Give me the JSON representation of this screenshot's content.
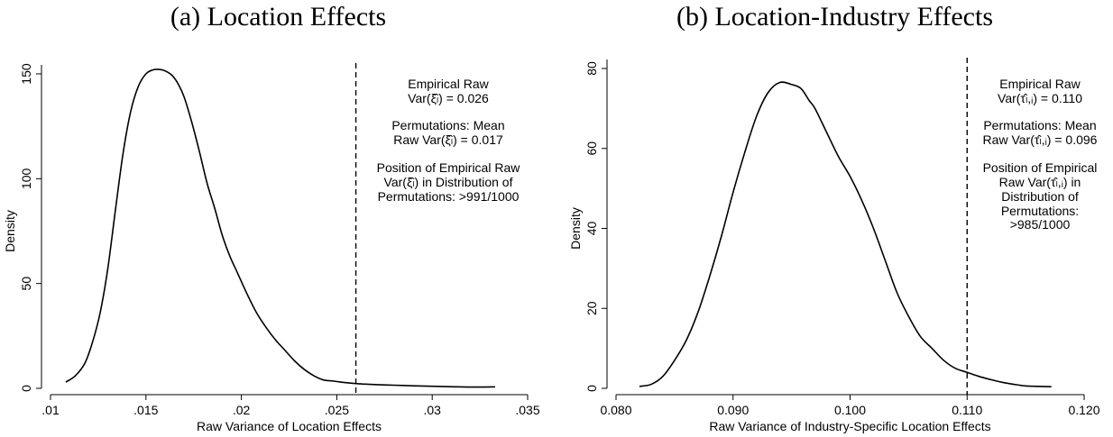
{
  "chart_data": [
    {
      "type": "line",
      "title": "(a) Location Effects",
      "xlabel": "Raw Variance of Location Effects",
      "ylabel": "Density",
      "xlim": [
        0.01,
        0.035
      ],
      "ylim": [
        0,
        150
      ],
      "xticks": [
        0.01,
        0.015,
        0.02,
        0.025,
        0.03,
        0.035
      ],
      "xtick_labels": [
        ".01",
        ".015",
        ".02",
        ".025",
        ".03",
        ".035"
      ],
      "yticks": [
        0,
        50,
        100,
        150
      ],
      "ytick_labels": [
        "0",
        "50",
        "100",
        "150"
      ],
      "grid": false,
      "series": [
        {
          "x": [
            0.0108,
            0.0113,
            0.0118,
            0.0122,
            0.0126,
            0.013,
            0.0134,
            0.0138,
            0.0142,
            0.0146,
            0.015,
            0.0154,
            0.0158,
            0.0161,
            0.0164,
            0.0167,
            0.017,
            0.0174,
            0.0178,
            0.0182,
            0.0186,
            0.019,
            0.0194,
            0.0198,
            0.0203,
            0.0208,
            0.0213,
            0.0218,
            0.0223,
            0.0228,
            0.0233,
            0.0238,
            0.0243,
            0.0248,
            0.0252,
            0.0256,
            0.026,
            0.0265,
            0.027,
            0.028,
            0.029,
            0.03,
            0.031,
            0.032,
            0.0333
          ],
          "y": [
            3,
            6,
            12,
            22,
            36,
            57,
            85,
            112,
            132,
            144,
            150,
            152,
            152,
            151,
            149,
            145,
            139,
            127,
            113,
            98,
            86,
            73,
            63,
            55,
            45,
            36,
            29,
            23,
            18,
            13,
            9,
            6,
            4,
            3.5,
            3,
            2.6,
            2.3,
            2,
            1.8,
            1.5,
            1.2,
            1,
            0.8,
            0.6,
            0.7
          ]
        }
      ],
      "reference_line": {
        "x": 0.026,
        "style": "dashed"
      },
      "annotations": [
        "Empirical Raw",
        "Var(ξ̂ₗ) = 0.026",
        "Permutations: Mean",
        "Raw Var(ξ̂ₗ) = 0.017",
        "Position of Empirical Raw",
        "Var(ξ̂ₗ) in Distribution of",
        "Permutations: >991/1000"
      ]
    },
    {
      "type": "line",
      "title": "(b) Location-Industry Effects",
      "xlabel": "Raw Variance of Industry-Specific Location Effects",
      "ylabel": "Density",
      "xlim": [
        0.08,
        0.12
      ],
      "ylim": [
        0,
        80
      ],
      "xticks": [
        0.08,
        0.09,
        0.1,
        0.11,
        0.12
      ],
      "xtick_labels": [
        "0.080",
        "0.090",
        "0.100",
        "0.110",
        "0.120"
      ],
      "yticks": [
        0,
        20,
        40,
        60,
        80
      ],
      "ytick_labels": [
        "0",
        "20",
        "40",
        "60",
        "80"
      ],
      "grid": false,
      "series": [
        {
          "x": [
            0.082,
            0.083,
            0.084,
            0.085,
            0.086,
            0.087,
            0.088,
            0.089,
            0.09,
            0.091,
            0.092,
            0.093,
            0.094,
            0.095,
            0.0958,
            0.0965,
            0.097,
            0.098,
            0.099,
            0.1,
            0.101,
            0.102,
            0.103,
            0.104,
            0.105,
            0.106,
            0.107,
            0.108,
            0.109,
            0.11,
            0.111,
            0.112,
            0.113,
            0.114,
            0.115,
            0.116,
            0.1172
          ],
          "y": [
            0.5,
            1,
            3,
            7,
            12,
            19,
            28,
            38,
            49,
            59,
            68,
            74,
            76.5,
            76,
            75,
            72,
            70,
            64,
            58,
            53,
            47,
            40,
            32,
            24,
            18,
            13,
            10,
            7,
            5,
            4,
            3,
            2.2,
            1.5,
            1,
            0.6,
            0.5,
            0.4
          ]
        }
      ],
      "reference_line": {
        "x": 0.11,
        "style": "dashed"
      },
      "annotations": [
        "Empirical Raw",
        "Var(τ̂ₗ,ᵢ) = 0.110",
        "Permutations: Mean",
        "Raw Var(τ̂ₗ,ᵢ) = 0.096",
        "Position of Empirical",
        "Raw Var(τ̂ₗ,ᵢ) in",
        "Distribution of",
        "Permutations:",
        ">985/1000"
      ]
    }
  ]
}
